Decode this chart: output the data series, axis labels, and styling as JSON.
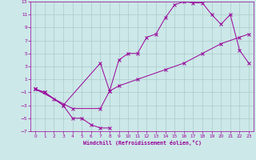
{
  "xlabel": "Windchill (Refroidissement éolien,°C)",
  "line_color": "#990099",
  "bg_color": "#cce8e8",
  "grid_color": "#aacccc",
  "xlim": [
    -0.5,
    23.5
  ],
  "ylim": [
    -7,
    13
  ],
  "xticks": [
    0,
    1,
    2,
    3,
    4,
    5,
    6,
    7,
    8,
    9,
    10,
    11,
    12,
    13,
    14,
    15,
    16,
    17,
    18,
    19,
    20,
    21,
    22,
    23
  ],
  "yticks": [
    -7,
    -5,
    -3,
    -1,
    1,
    3,
    5,
    7,
    9,
    11,
    13
  ],
  "s1_x": [
    0,
    1,
    3,
    4,
    5,
    6,
    7,
    8
  ],
  "s1_y": [
    -0.5,
    -1,
    -3,
    -5,
    -5,
    -6,
    -6.5,
    -6.5
  ],
  "s2_x": [
    0,
    2,
    4,
    7,
    8,
    9,
    11,
    14,
    16,
    18,
    20,
    22,
    23
  ],
  "s2_y": [
    -0.5,
    -2,
    -3.5,
    -3.5,
    -0.8,
    0,
    1,
    2.5,
    3.5,
    5,
    6.5,
    7.5,
    8
  ],
  "s3_x": [
    0,
    1,
    3,
    7,
    8,
    9,
    10,
    11,
    12,
    13,
    14,
    15,
    16,
    17,
    18,
    19,
    20,
    21,
    22,
    23
  ],
  "s3_y": [
    -0.5,
    -1,
    -3,
    3.5,
    -0.8,
    4,
    5,
    5,
    7.5,
    8,
    10.5,
    12.5,
    13,
    12.8,
    12.8,
    11,
    9.5,
    11,
    5.5,
    3.5
  ]
}
